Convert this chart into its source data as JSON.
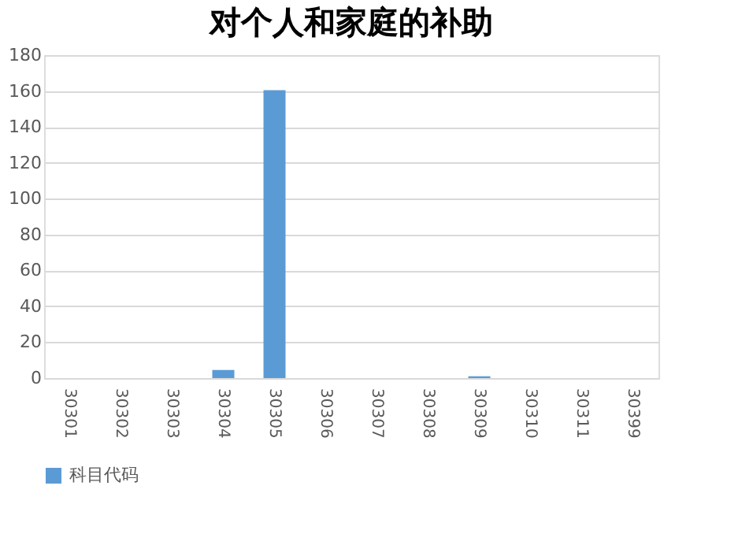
{
  "chart_data": {
    "type": "bar",
    "title": "对个人和家庭的补助",
    "categories": [
      "30301",
      "30302",
      "30303",
      "30304",
      "30305",
      "30306",
      "30307",
      "30308",
      "30309",
      "30310",
      "30311",
      "30399"
    ],
    "series": [
      {
        "name": "科目代码",
        "color": "#5b9bd5",
        "values": [
          0,
          0,
          0,
          4.5,
          160.5,
          0,
          0,
          0,
          1,
          0,
          0,
          0
        ]
      }
    ],
    "ylim": [
      0,
      180
    ],
    "yticks": [
      0,
      20,
      40,
      60,
      80,
      100,
      120,
      140,
      160,
      180
    ],
    "grid": "y",
    "legend": "bottom"
  }
}
